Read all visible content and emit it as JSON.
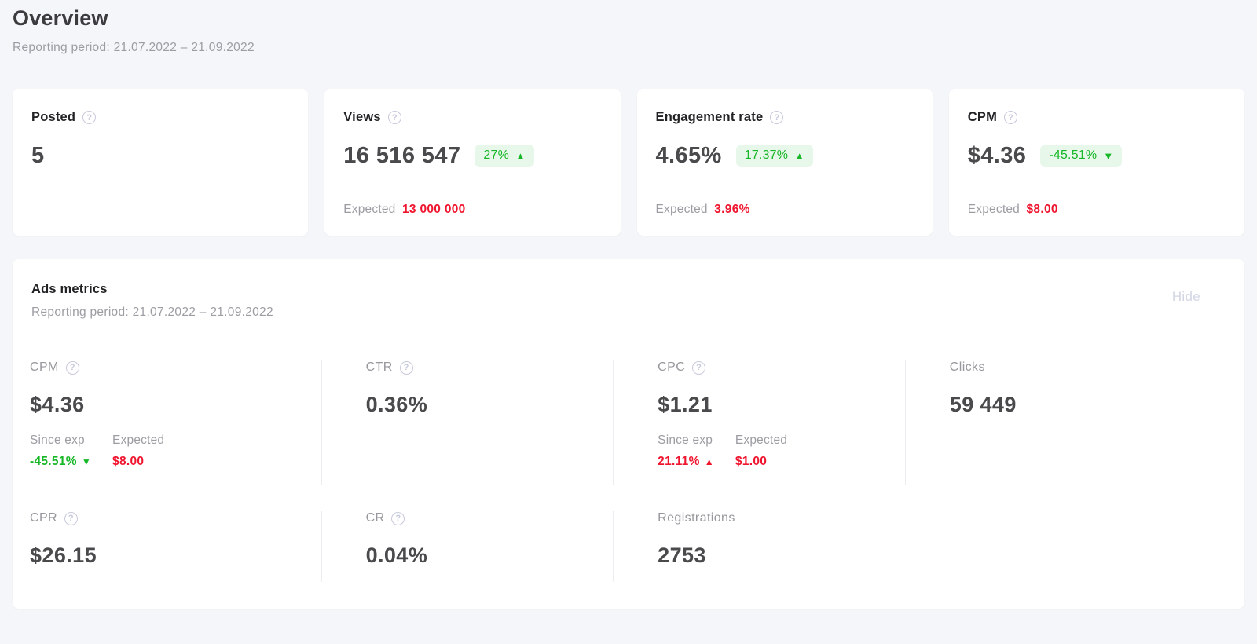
{
  "header": {
    "title": "Overview",
    "reporting_period": "Reporting period: 21.07.2022 – 21.09.2022"
  },
  "icons": {
    "help": "?",
    "up_triangle": "▲",
    "down_triangle": "▼"
  },
  "summary_cards": {
    "posted": {
      "label": "Posted",
      "value": "5"
    },
    "views": {
      "label": "Views",
      "value": "16 516 547",
      "badge_text": "27%",
      "badge_direction": "up",
      "expected_label": "Expected",
      "expected_value": "13 000 000"
    },
    "engagement_rate": {
      "label": "Engagement rate",
      "value": "4.65%",
      "badge_text": "17.37%",
      "badge_direction": "up",
      "expected_label": "Expected",
      "expected_value": "3.96%"
    },
    "cpm": {
      "label": "CPM",
      "value": "$4.36",
      "badge_text": "-45.51%",
      "badge_direction": "down",
      "expected_label": "Expected",
      "expected_value": "$8.00"
    }
  },
  "ads_metrics": {
    "title": "Ads metrics",
    "reporting_period": "Reporting period: 21.07.2022 – 21.09.2022",
    "hide_label": "Hide",
    "cpm": {
      "label": "CPM",
      "value": "$4.36",
      "since_exp_label": "Since exp",
      "since_exp_value": "-45.51%",
      "since_exp_direction": "down",
      "since_exp_color": "green",
      "expected_label": "Expected",
      "expected_value": "$8.00"
    },
    "ctr": {
      "label": "CTR",
      "value": "0.36%"
    },
    "cpc": {
      "label": "CPC",
      "value": "$1.21",
      "since_exp_label": "Since exp",
      "since_exp_value": "21.11%",
      "since_exp_direction": "up",
      "since_exp_color": "red",
      "expected_label": "Expected",
      "expected_value": "$1.00"
    },
    "clicks": {
      "label": "Clicks",
      "value": "59 449"
    },
    "cpr": {
      "label": "CPR",
      "value": "$26.15"
    },
    "cr": {
      "label": "CR",
      "value": "0.04%"
    },
    "registrations": {
      "label": "Registrations",
      "value": "2753"
    }
  },
  "colors": {
    "positive_green": "#17b727",
    "positive_badge_bg": "#e7f7ea",
    "negative_red": "#ef152e",
    "muted_gray": "#9c9ca3",
    "label_gray": "#97979d",
    "value_dark": "#4a4a4c",
    "title_dark": "#232326",
    "help_icon": "#c7cadb",
    "hide_link": "#d2d5e3",
    "page_bg": "#f5f6f9",
    "card_bg": "#ffffff",
    "divider": "#ececf1"
  }
}
